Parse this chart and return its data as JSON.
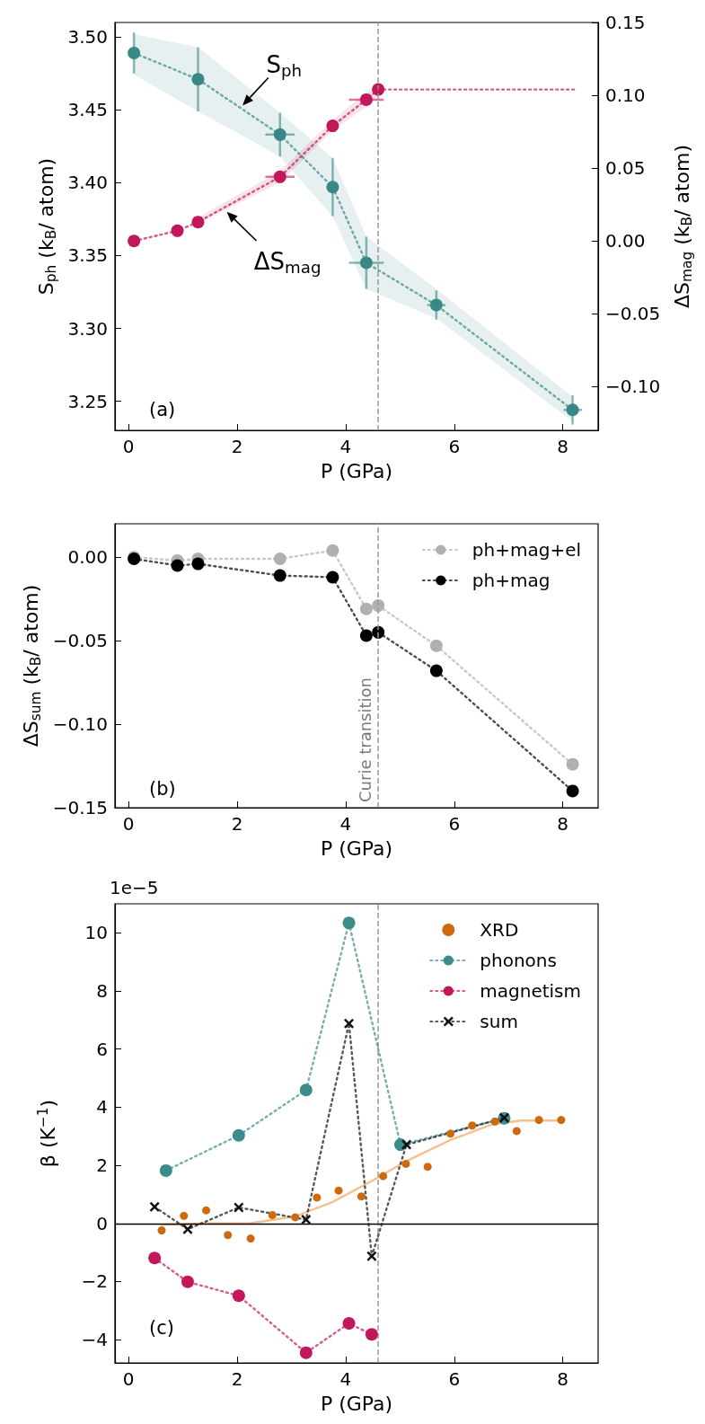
{
  "chart_data": [
    {
      "type": "line",
      "xlabel": "P (GPa)",
      "ylabel": "S$_{ph}$ (k$_{B}$/ atom)",
      "y2label": "ΔS$_{mag}$ (k$_{B}$/ atom)",
      "xlim": [
        -0.25,
        8.65
      ],
      "xticks": [
        0,
        2,
        4,
        6,
        8
      ],
      "ylim": [
        3.23,
        3.51
      ],
      "yticks": [
        {
          "value": 3.25,
          "label": "3.25"
        },
        {
          "value": 3.3,
          "label": "3.30"
        },
        {
          "value": 3.35,
          "label": "3.35"
        },
        {
          "value": 3.4,
          "label": "3.40"
        },
        {
          "value": 3.45,
          "label": "3.45"
        },
        {
          "value": 3.5,
          "label": "3.50"
        }
      ],
      "y2lim": [
        -0.13,
        0.15
      ],
      "y2ticks": [
        {
          "value": -0.1,
          "label": "−0.10"
        },
        {
          "value": -0.05,
          "label": "−0.05"
        },
        {
          "value": 0,
          "label": "0.00"
        },
        {
          "value": 0.05,
          "label": "0.05"
        },
        {
          "value": 0.1,
          "label": "0.10"
        },
        {
          "value": 0.15,
          "label": "0.15"
        }
      ],
      "ref_lines": [
        {
          "axis": "x",
          "value": 4.6,
          "color": "#999999",
          "line_style": "dashed"
        }
      ],
      "annotations": [
        "(a)",
        {
          "text": "S$_{ph}$",
          "x": 2.1,
          "y": 3.453
        },
        {
          "text": "ΔS$_{mag}$",
          "x": 1.81,
          "y": 3.38
        }
      ],
      "series": [
        {
          "type": "line",
          "color": "#3a8787",
          "marker": "circle",
          "line_style": "dotted",
          "x": [
            0.1,
            1.28,
            2.79,
            3.76,
            4.38,
            5.67,
            8.18
          ],
          "values": [
            3.489,
            3.471,
            3.433,
            3.397,
            3.345,
            3.316,
            3.244
          ],
          "errors": [
            0.014,
            0.022,
            0.015,
            0.02,
            0.018,
            0.01,
            0.01
          ],
          "xerrors": [
            null,
            null,
            0.27,
            null,
            0.32,
            0.17,
            0.17
          ],
          "lower": [
            3.474,
            3.449,
            3.418,
            3.377,
            3.327,
            3.307,
            3.236
          ],
          "upper": [
            3.502,
            3.493,
            3.448,
            3.417,
            3.363,
            3.327,
            3.253
          ]
        },
        {
          "type": "line",
          "axis": "y2",
          "color": "#c2185b",
          "marker": "circle",
          "line_style": "dotted",
          "x": [
            0.1,
            0.9,
            1.28,
            2.79,
            3.76,
            4.38,
            4.6
          ],
          "values": [
            0.0,
            0.007,
            0.013,
            0.044,
            0.079,
            0.097,
            0.104
          ],
          "xerrors": [
            null,
            null,
            null,
            0.27,
            null,
            0.32,
            null
          ],
          "lower": [
            null,
            null,
            0.012,
            0.04,
            0.076,
            0.092,
            0.1
          ],
          "upper": [
            null,
            null,
            0.016,
            0.048,
            0.083,
            0.102,
            0.106
          ]
        },
        {
          "type": "line",
          "axis": "y2",
          "color": "#c2185b",
          "marker": "none",
          "line_style": "dotted",
          "x": [
            4.6,
            8.27
          ],
          "values": [
            0.104,
            0.104
          ]
        }
      ]
    },
    {
      "type": "line",
      "xlabel": "P (GPa)",
      "ylabel": "ΔS$_{sum}$ (k$_{B}$/ atom)",
      "legend": "top right",
      "xlim": [
        -0.25,
        8.65
      ],
      "xticks": [
        0,
        2,
        4,
        6,
        8
      ],
      "ylim": [
        -0.15,
        0.02
      ],
      "yticks": [
        {
          "value": -0.15,
          "label": "−0.15"
        },
        {
          "value": -0.1,
          "label": "−0.10"
        },
        {
          "value": -0.05,
          "label": "−0.05"
        },
        {
          "value": 0,
          "label": "0.00"
        }
      ],
      "ref_lines": [
        {
          "axis": "x",
          "value": 4.6,
          "color": "#999999",
          "line_style": "dashed",
          "label": "Curie transition"
        }
      ],
      "annotations": [
        "(b)"
      ],
      "series": [
        {
          "name": "ph+mag+el",
          "type": "line",
          "color": "#b0b0b0",
          "marker": "circle",
          "line_style": "dotted",
          "x": [
            0.1,
            0.9,
            1.28,
            2.79,
            3.76,
            4.38,
            4.6,
            5.67,
            8.18
          ],
          "values": [
            0.0,
            -0.002,
            -0.001,
            -0.001,
            0.004,
            -0.031,
            -0.029,
            -0.053,
            -0.124
          ]
        },
        {
          "name": "ph+mag",
          "type": "line",
          "color": "#000000",
          "marker": "circle",
          "line_style": "dotted",
          "x": [
            0.1,
            0.9,
            1.28,
            2.79,
            3.76,
            4.38,
            4.6,
            5.67,
            8.18
          ],
          "values": [
            -0.001,
            -0.005,
            -0.004,
            -0.011,
            -0.012,
            -0.047,
            -0.045,
            -0.068,
            -0.14
          ]
        }
      ]
    },
    {
      "type": "line",
      "xlabel": "P (GPa)",
      "ylabel": "β (K$^{−1}$)",
      "legend": "top right",
      "xlim": [
        -0.25,
        8.65
      ],
      "xticks": [
        0,
        2,
        4,
        6,
        8
      ],
      "ylim": [
        -4.8,
        11
      ],
      "yticks": [
        {
          "value": -4,
          "label": "−4"
        },
        {
          "value": -2,
          "label": "−2"
        },
        0,
        2,
        4,
        6,
        8,
        10
      ],
      "ref_lines": [
        {
          "axis": "x",
          "value": 4.6,
          "color": "#999999",
          "line_style": "dashed"
        },
        {
          "axis": "y",
          "value": 0,
          "color": "#000000",
          "line_style": "solid"
        }
      ],
      "annotations": [
        "(c)",
        "1e−5"
      ],
      "series": [
        {
          "name": "XRD",
          "type": "scatter",
          "color": "#cc6a10",
          "marker": "circle",
          "x": [
            0.61,
            1.02,
            1.43,
            1.83,
            2.25,
            2.65,
            3.07,
            3.47,
            3.87,
            4.29,
            4.69,
            5.11,
            5.51,
            5.93,
            6.33,
            6.75,
            7.15,
            7.56,
            7.97
          ],
          "values": [
            -0.24,
            0.26,
            0.45,
            -0.4,
            -0.52,
            0.29,
            0.21,
            0.89,
            1.13,
            0.93,
            1.63,
            2.05,
            1.95,
            3.09,
            3.37,
            3.51,
            3.18,
            3.56,
            3.56
          ]
        },
        {
          "type": "line",
          "color": "#f5c08c",
          "marker": "none",
          "line_style": "solid",
          "x": [
            0.61,
            1.4,
            2.22,
            3.07,
            3.76,
            4.52,
            5.11,
            5.93,
            6.7,
            7.23,
            7.97
          ],
          "values": [
            -0.05,
            0.0,
            0.0,
            0.24,
            0.74,
            1.5,
            2.14,
            2.87,
            3.41,
            3.54,
            3.54
          ]
        },
        {
          "name": "phonons",
          "type": "line",
          "color": "#3d8c8c",
          "marker": "circle",
          "line_style": "dotted",
          "x": [
            0.69,
            2.03,
            3.27,
            4.06,
            5.01,
            6.92
          ],
          "values": [
            1.82,
            3.03,
            4.59,
            10.34,
            2.71,
            3.62
          ]
        },
        {
          "name": "magnetism",
          "type": "line",
          "color": "#c2185b",
          "marker": "circle",
          "line_style": "dotted",
          "x": [
            0.48,
            1.09,
            2.03,
            3.27,
            4.06,
            4.48
          ],
          "values": [
            -1.19,
            -2.01,
            -2.49,
            -4.45,
            -3.44,
            -3.82
          ]
        },
        {
          "name": "sum",
          "type": "line",
          "color": "#111111",
          "marker": "cross",
          "line_style": "dotted",
          "x": [
            0.48,
            1.09,
            2.03,
            3.27,
            4.06,
            4.48,
            5.12,
            6.92
          ],
          "values": [
            0.57,
            -0.2,
            0.55,
            0.13,
            6.88,
            -1.13,
            2.71,
            3.63
          ]
        }
      ]
    }
  ]
}
